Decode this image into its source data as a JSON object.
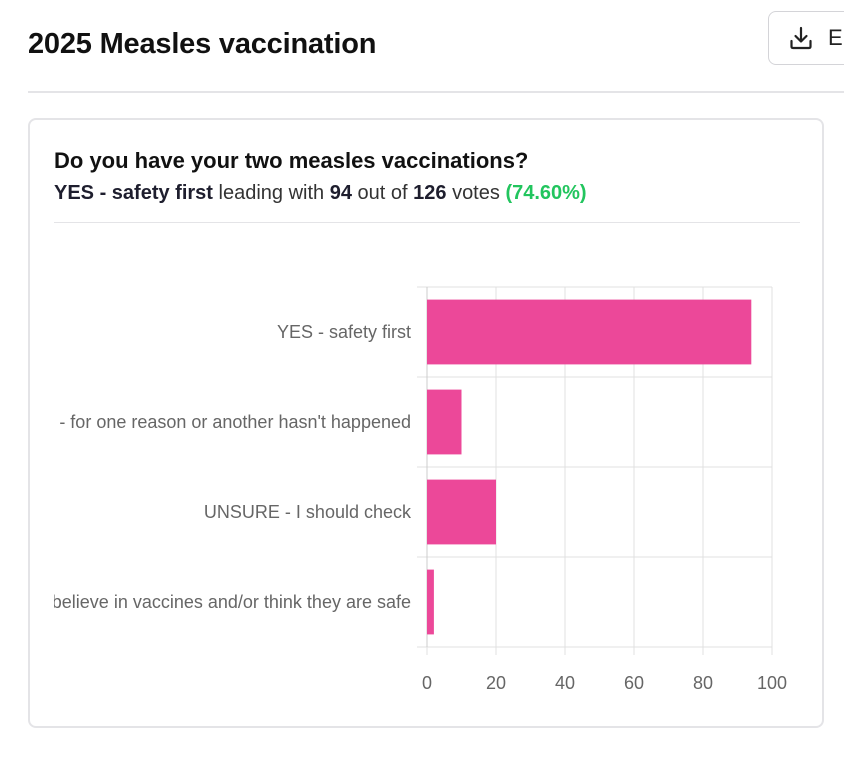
{
  "header": {
    "title": "2025 Measles vaccination",
    "export_label": "E",
    "export_icon": "download-icon"
  },
  "poll": {
    "question": "Do you have your two measles vaccinations?",
    "leading_option": "YES - safety first",
    "leading_text": "leading with",
    "leading_votes": "94",
    "out_of_text": "out of",
    "total_votes": "126",
    "votes_text": "votes",
    "leading_percent": "(74.60%)"
  },
  "chart_data": {
    "type": "bar",
    "orientation": "horizontal",
    "categories": [
      "YES - safety first",
      "- for one reason or another hasn't happened",
      "UNSURE - I should check",
      "believe in vaccines and/or think they are safe"
    ],
    "values": [
      94,
      10,
      20,
      2
    ],
    "xlim": [
      0,
      100
    ],
    "xticks": [
      0,
      20,
      40,
      60,
      80,
      100
    ],
    "grid": true,
    "bar_color": "#ec4899",
    "grid_color": "#e0e0e0"
  }
}
